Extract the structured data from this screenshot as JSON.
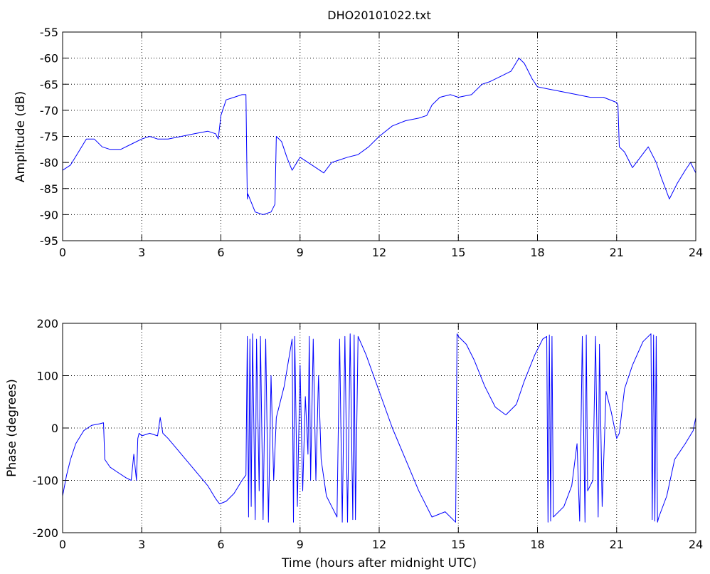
{
  "figure": {
    "title": "DHO20101022.txt"
  },
  "chart_data": [
    {
      "type": "line",
      "title": "DHO20101022.txt",
      "xlabel": "",
      "ylabel": "Amplitude (dB)",
      "xlim": [
        0,
        24
      ],
      "ylim": [
        -95,
        -55
      ],
      "xticks": [
        0,
        3,
        6,
        9,
        12,
        15,
        18,
        21,
        24
      ],
      "yticks": [
        -95,
        -90,
        -85,
        -80,
        -75,
        -70,
        -65,
        -60,
        -55
      ],
      "grid": true,
      "line_color": "#0000ff",
      "series": [
        {
          "x": [
            0,
            0.3,
            0.6,
            0.9,
            1.2,
            1.5,
            1.8,
            2.2,
            2.6,
            3.0,
            3.3,
            3.6,
            4.0,
            4.5,
            5.0,
            5.5,
            5.8,
            5.9,
            6.0,
            6.2,
            6.5,
            6.8,
            6.95,
            7.0,
            7.02,
            7.3,
            7.6,
            7.9,
            8.05,
            8.1,
            8.3,
            8.5,
            8.7,
            9.0,
            9.3,
            9.6,
            9.9,
            10.2,
            10.5,
            10.8,
            11.2,
            11.6,
            12.0,
            12.5,
            13.0,
            13.5,
            13.8,
            14.0,
            14.3,
            14.7,
            15.0,
            15.5,
            15.9,
            16.2,
            16.6,
            17.0,
            17.3,
            17.5,
            17.8,
            18.0,
            18.5,
            19.0,
            19.5,
            20.0,
            20.5,
            21.0,
            21.05,
            21.1,
            21.3,
            21.6,
            21.9,
            22.2,
            22.5,
            22.7,
            23.0,
            23.3,
            23.6,
            23.8,
            24.0
          ],
          "y": [
            -81.5,
            -80.5,
            -78,
            -75.5,
            -75.5,
            -77,
            -77.5,
            -77.5,
            -76.5,
            -75.5,
            -75,
            -75.5,
            -75.5,
            -75,
            -74.5,
            -74,
            -74.5,
            -75.5,
            -71,
            -68,
            -67.5,
            -67,
            -67,
            -87,
            -86,
            -89.5,
            -90,
            -89.5,
            -88,
            -75,
            -76,
            -79,
            -81.5,
            -79,
            -80,
            -81,
            -82,
            -80,
            -79.5,
            -79,
            -78.5,
            -77,
            -75,
            -73,
            -72,
            -71.5,
            -71,
            -69,
            -67.5,
            -67,
            -67.5,
            -67,
            -65,
            -64.5,
            -63.5,
            -62.5,
            -60,
            -61,
            -64,
            -65.5,
            -66,
            -66.5,
            -67,
            -67.5,
            -67.5,
            -68.5,
            -69,
            -77,
            -78,
            -81,
            -79,
            -77,
            -80,
            -83,
            -87,
            -84,
            -81.5,
            -80,
            -82
          ]
        }
      ]
    },
    {
      "type": "line",
      "title": "",
      "xlabel": "Time (hours after midnight UTC)",
      "ylabel": "Phase (degrees)",
      "xlim": [
        0,
        24
      ],
      "ylim": [
        -200,
        200
      ],
      "xticks": [
        0,
        3,
        6,
        9,
        12,
        15,
        18,
        21,
        24
      ],
      "yticks": [
        -200,
        -100,
        0,
        100,
        200
      ],
      "grid": true,
      "line_color": "#0000ff",
      "series": [
        {
          "x": [
            0,
            0.15,
            0.3,
            0.5,
            0.8,
            1.1,
            1.4,
            1.55,
            1.6,
            1.8,
            2.1,
            2.4,
            2.6,
            2.7,
            2.8,
            2.85,
            2.9,
            3.0,
            3.3,
            3.6,
            3.7,
            3.8,
            4.0,
            4.5,
            5.0,
            5.5,
            5.8,
            5.95,
            6.2,
            6.5,
            6.8,
            6.95,
            7.0,
            7.05,
            7.1,
            7.15,
            7.2,
            7.3,
            7.35,
            7.45,
            7.5,
            7.6,
            7.7,
            7.8,
            7.9,
            8.0,
            8.1,
            8.4,
            8.7,
            8.75,
            8.8,
            8.9,
            9.0,
            9.1,
            9.2,
            9.3,
            9.35,
            9.4,
            9.5,
            9.6,
            9.7,
            9.8,
            10.0,
            10.2,
            10.4,
            10.5,
            10.6,
            10.7,
            10.8,
            10.9,
            11.0,
            11.05,
            11.1,
            11.2,
            11.5,
            12.0,
            12.5,
            13.0,
            13.5,
            14.0,
            14.5,
            14.9,
            14.95,
            15.0,
            15.3,
            15.6,
            16.0,
            16.4,
            16.8,
            17.2,
            17.5,
            17.9,
            18.2,
            18.35,
            18.4,
            18.45,
            18.5,
            18.55,
            18.6,
            19.0,
            19.3,
            19.5,
            19.6,
            19.7,
            19.8,
            19.85,
            19.9,
            20.1,
            20.2,
            20.3,
            20.35,
            20.45,
            20.6,
            20.8,
            21.0,
            21.1,
            21.3,
            21.6,
            22.0,
            22.3,
            22.35,
            22.4,
            22.45,
            22.5,
            22.55,
            22.6,
            22.9,
            23.2,
            23.6,
            23.9,
            24.0
          ],
          "y": [
            -130,
            -90,
            -60,
            -30,
            -5,
            5,
            8,
            10,
            -60,
            -75,
            -85,
            -95,
            -100,
            -50,
            -100,
            -20,
            -10,
            -15,
            -10,
            -15,
            20,
            -10,
            -20,
            -50,
            -80,
            -110,
            -135,
            -145,
            -140,
            -125,
            -100,
            -90,
            175,
            -170,
            170,
            -150,
            180,
            -175,
            170,
            -120,
            175,
            -175,
            170,
            -180,
            100,
            -100,
            20,
            80,
            170,
            -180,
            175,
            -150,
            120,
            -120,
            60,
            -50,
            175,
            -100,
            170,
            -100,
            100,
            -60,
            -130,
            -150,
            -170,
            170,
            -180,
            175,
            -180,
            180,
            -175,
            178,
            -175,
            175,
            140,
            70,
            0,
            -60,
            -120,
            -170,
            -160,
            -180,
            180,
            175,
            160,
            130,
            80,
            40,
            25,
            45,
            90,
            140,
            170,
            175,
            -180,
            178,
            -178,
            175,
            -170,
            -150,
            -110,
            -30,
            -178,
            175,
            -180,
            178,
            -120,
            -100,
            175,
            -170,
            160,
            -150,
            70,
            30,
            -20,
            -10,
            75,
            120,
            165,
            180,
            -175,
            178,
            -178,
            175,
            -180,
            -170,
            -130,
            -60,
            -30,
            -5,
            20
          ]
        }
      ]
    }
  ]
}
